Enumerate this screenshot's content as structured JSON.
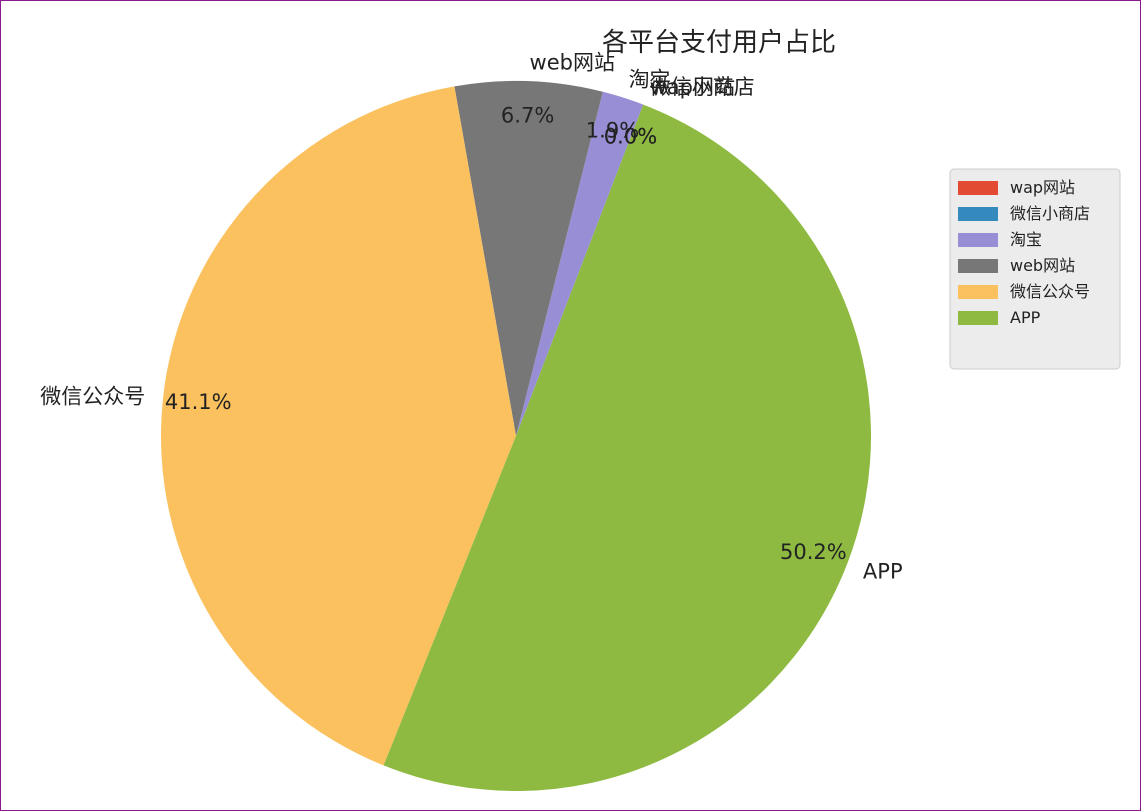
{
  "chart_data": {
    "type": "pie",
    "title": "各平台支付用户占比",
    "slices": [
      {
        "label": "wap网站",
        "value": 0.0,
        "pct_label": "0.0%",
        "color": "#e24a33"
      },
      {
        "label": "微信小商店",
        "value": 0.0,
        "pct_label": "0.0%",
        "color": "#348abd"
      },
      {
        "label": "淘宝",
        "value": 1.9,
        "pct_label": "1.9%",
        "color": "#988ed5"
      },
      {
        "label": "web网站",
        "value": 6.7,
        "pct_label": "6.7%",
        "color": "#777777"
      },
      {
        "label": "微信公众号",
        "value": 41.1,
        "pct_label": "41.1%",
        "color": "#fbc15e"
      },
      {
        "label": "APP",
        "value": 50.2,
        "pct_label": "50.2%",
        "color": "#8eba42"
      }
    ],
    "legend": {
      "position": "right",
      "entries": [
        "wap网站",
        "微信小商店",
        "淘宝",
        "web网站",
        "微信公众号",
        "APP"
      ]
    }
  }
}
